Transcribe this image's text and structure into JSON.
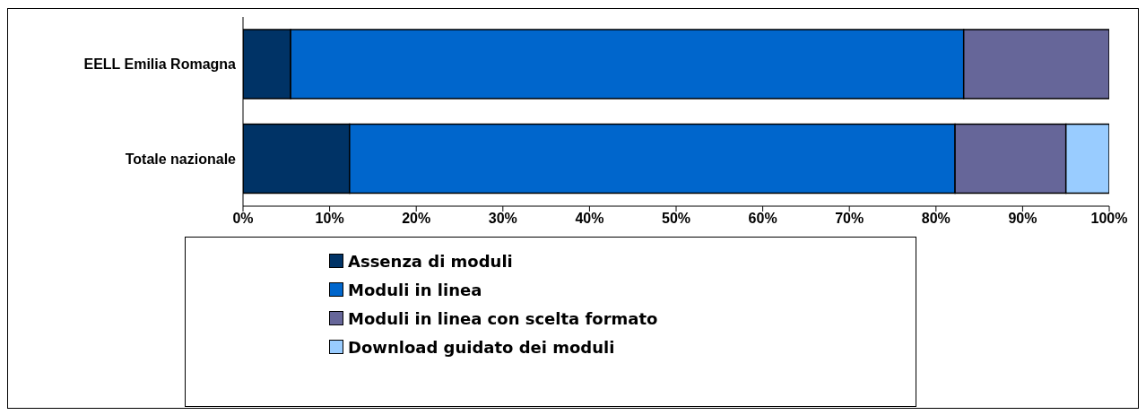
{
  "chart_data": {
    "type": "bar",
    "orientation": "horizontal",
    "stacked": true,
    "categories": [
      "EELL Emilia Romagna",
      "Totale nazionale"
    ],
    "series": [
      {
        "name": "Assenza di moduli",
        "color": "#003366",
        "values": [
          5.5,
          12.3
        ]
      },
      {
        "name": "Moduli in linea",
        "color": "#0066cc",
        "values": [
          77.7,
          69.9
        ]
      },
      {
        "name": "Moduli in linea con scelta formato",
        "color": "#666699",
        "values": [
          16.8,
          12.8
        ]
      },
      {
        "name": "Download guidato dei moduli",
        "color": "#99ccff",
        "values": [
          null,
          5.0
        ]
      }
    ],
    "xlim": [
      0,
      100
    ],
    "xticks": [
      {
        "value": 0,
        "label": "0%"
      },
      {
        "value": 10,
        "label": "10%"
      },
      {
        "value": 20,
        "label": "20%"
      },
      {
        "value": 30,
        "label": "30%"
      },
      {
        "value": 40,
        "label": "40%"
      },
      {
        "value": 50,
        "label": "50%"
      },
      {
        "value": 60,
        "label": "60%"
      },
      {
        "value": 70,
        "label": "70%"
      },
      {
        "value": 80,
        "label": "80%"
      },
      {
        "value": 90,
        "label": "90%"
      },
      {
        "value": 100,
        "label": "100%"
      }
    ],
    "grid": false,
    "legend": "bottom"
  }
}
